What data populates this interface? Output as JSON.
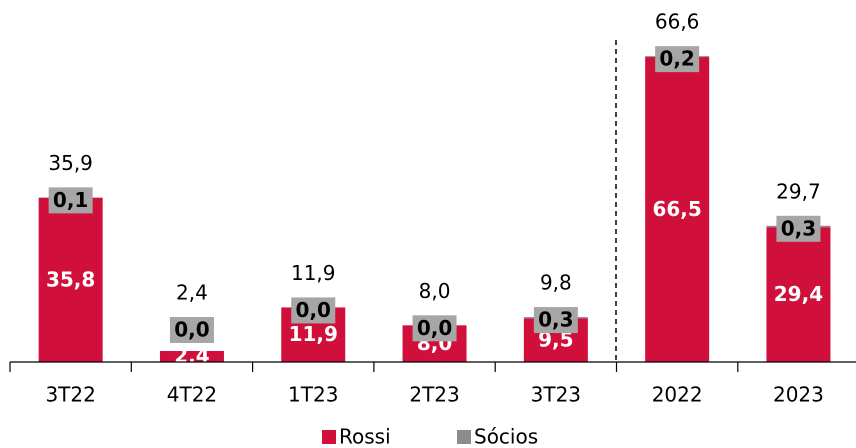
{
  "chart_data": {
    "type": "stacked_bar",
    "categories": [
      "3T22",
      "4T22",
      "1T23",
      "2T23",
      "3T23",
      "2022",
      "2023"
    ],
    "series": [
      {
        "name": "Rossi",
        "color": "#d0103a",
        "values": [
          35.8,
          2.4,
          11.9,
          8.0,
          9.5,
          66.5,
          29.4
        ],
        "value_labels": [
          "35,8",
          "2,4",
          "11,9",
          "8,0",
          "9,5",
          "66,5",
          "29,4"
        ]
      },
      {
        "name": "Sócios",
        "color": "#8c8c8c",
        "values": [
          0.1,
          0.0,
          0.0,
          0.0,
          0.3,
          0.2,
          0.3
        ],
        "value_labels": [
          "0,1",
          "0,0",
          "0,0",
          "0,0",
          "0,3",
          "0,2",
          "0,3"
        ]
      }
    ],
    "totals": [
      35.9,
      2.4,
      11.9,
      8.0,
      9.8,
      66.6,
      29.7
    ],
    "totals_labels": [
      "35,9",
      "2,4",
      "11,9",
      "8,0",
      "9,8",
      "66,6",
      "29,7"
    ],
    "ylim": [
      0,
      70
    ],
    "legend": "bottom"
  }
}
